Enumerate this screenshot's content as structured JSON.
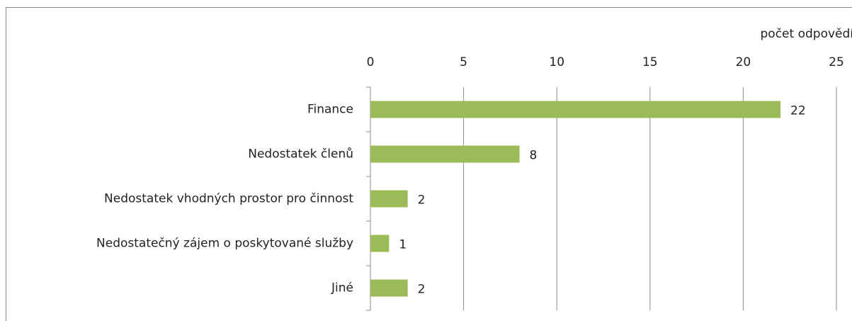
{
  "chart_data": {
    "type": "bar",
    "orientation": "horizontal",
    "x_axis_label": "počet odpovědí",
    "categories": [
      "Finance",
      "Nedostatek členů",
      "Nedostatek vhodných prostor pro činnost",
      "Nedostatečný zájem o poskytované služby",
      "Jiné"
    ],
    "values": [
      22,
      8,
      2,
      1,
      2
    ],
    "color": "#9bbb59",
    "xlim": [
      0,
      25
    ],
    "xticks": [
      0,
      5,
      10,
      15,
      20,
      25
    ],
    "grid": true
  }
}
